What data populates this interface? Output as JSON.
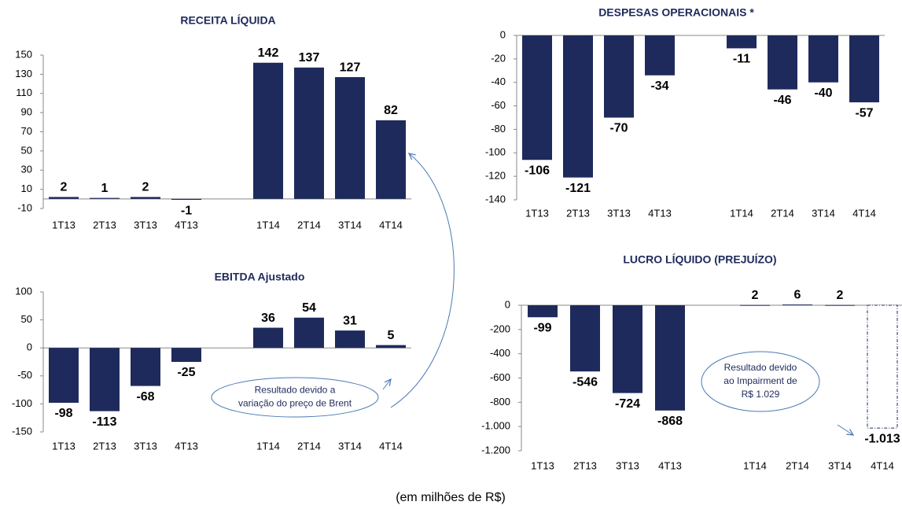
{
  "chart_data": [
    {
      "type": "bar",
      "title": "RECEITA LÍQUIDA",
      "categories": [
        "1T13",
        "2T13",
        "3T13",
        "4T13",
        null,
        "1T14",
        "2T14",
        "3T14",
        "4T14"
      ],
      "values": [
        2,
        1,
        2,
        -1,
        null,
        142,
        137,
        127,
        82
      ],
      "color": "#1f2a5c",
      "ylim": [
        -10,
        150
      ],
      "yticks": [
        -10,
        10,
        30,
        50,
        70,
        90,
        110,
        130,
        150
      ]
    },
    {
      "type": "bar",
      "title": "DESPESAS OPERACIONAIS *",
      "categories": [
        "1T13",
        "2T13",
        "3T13",
        "4T13",
        null,
        "1T14",
        "2T14",
        "3T14",
        "4T14"
      ],
      "values": [
        -106,
        -121,
        -70,
        -34,
        null,
        -11,
        -46,
        -40,
        -57
      ],
      "color": "#1f2a5c",
      "ylim": [
        -140,
        0
      ],
      "yticks": [
        0,
        -20,
        -40,
        -60,
        -80,
        -100,
        -120,
        -140
      ]
    },
    {
      "type": "bar",
      "title": "EBITDA Ajustado",
      "categories": [
        "1T13",
        "2T13",
        "3T13",
        "4T13",
        null,
        "1T14",
        "2T14",
        "3T14",
        "4T14"
      ],
      "values": [
        -98,
        -113,
        -68,
        -25,
        null,
        36,
        54,
        31,
        5
      ],
      "color": "#1f2a5c",
      "ylim": [
        -150,
        100
      ],
      "yticks": [
        100,
        50,
        0,
        -50,
        -100,
        -150
      ],
      "annotation": [
        "Resultado devido a",
        "variação do preço de Brent"
      ]
    },
    {
      "type": "bar",
      "title": "LUCRO LÍQUIDO (PREJUÍZO)",
      "categories": [
        "1T13",
        "2T13",
        "3T13",
        "4T13",
        null,
        "1T14",
        "2T14",
        "3T14",
        "4T14"
      ],
      "values": [
        -99,
        -546,
        -724,
        -868,
        null,
        2,
        6,
        2,
        -1013
      ],
      "value_labels": [
        "-99",
        "-546",
        "-724",
        "-868",
        null,
        "2",
        "6",
        "2",
        "-1.013"
      ],
      "colors": [
        "#1f2a5c",
        "#1f2a5c",
        "#1f2a5c",
        "#1f2a5c",
        null,
        "#1f2a5c",
        "#1f2a5c",
        "#1f2a5c",
        "#ffffff"
      ],
      "ylim": [
        -1200,
        0
      ],
      "yticks": [
        0,
        -200,
        -400,
        -600,
        -800,
        {
          "value": -1000,
          "label": "-1.000"
        },
        {
          "value": -1200,
          "label": "-1.200"
        }
      ],
      "annotation": [
        "Resultado devido",
        "ao Impairment de",
        "R$ 1.029"
      ]
    }
  ],
  "footnote": "(em milhões de R$)"
}
